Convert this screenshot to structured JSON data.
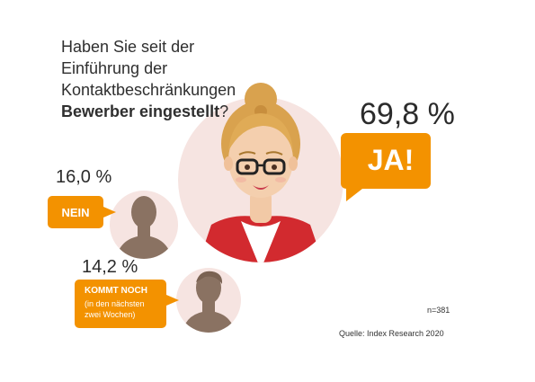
{
  "question": {
    "line1": "Haben Sie seit der",
    "line2": "Einführung der",
    "line3": "Kontaktbeschränkungen",
    "line4_bold": "Bewerber eingestellt",
    "line4_end": "?"
  },
  "colors": {
    "accent": "#f39200",
    "circle": "#f6e4e1",
    "silhouette": "#8a7262",
    "text": "#2b2b2b"
  },
  "chart_data": {
    "type": "pie",
    "categories": [
      "JA!",
      "NEIN",
      "KOMMT NOCH (in den nächsten zwei Wochen)"
    ],
    "values": [
      69.8,
      16.0,
      14.2
    ],
    "value_labels": [
      "69,8 %",
      "16,0 %",
      "14,2 %"
    ],
    "unit": "%",
    "title": "Haben Sie seit der Einführung der Kontaktbeschränkungen Bewerber eingestellt?"
  },
  "answers": {
    "yes": {
      "pct": "69,8 %",
      "label": "JA!"
    },
    "no": {
      "pct": "16,0 %",
      "label": "NEIN"
    },
    "soon": {
      "pct": "14,2 %",
      "label": "KOMMT NOCH",
      "sub1": "(in den nächsten",
      "sub2": "zwei Wochen)"
    }
  },
  "footer": {
    "n": "n=381",
    "source": "Quelle: Index Research 2020"
  }
}
